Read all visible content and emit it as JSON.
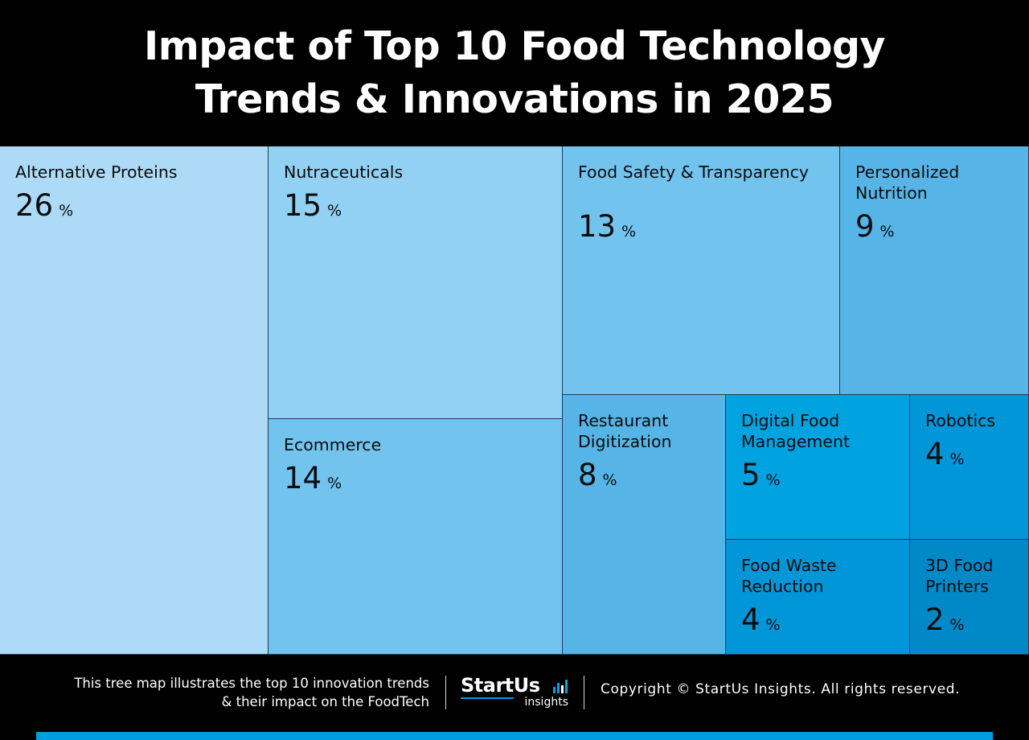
{
  "header": {
    "title_line1": "Impact of Top 10 Food Technology",
    "title_line2": "Trends & Innovations in 2025"
  },
  "chart_data": {
    "type": "treemap",
    "title": "Impact of Top 10 Food Technology Trends & Innovations in 2025",
    "unit": "%",
    "items": [
      {
        "label": "Alternative Proteins",
        "value": 26,
        "color": "#addbf7"
      },
      {
        "label": "Nutraceuticals",
        "value": 15,
        "color": "#92d1f4"
      },
      {
        "label": "Ecommerce",
        "value": 14,
        "color": "#72c4ee"
      },
      {
        "label": "Food Safety & Transparency",
        "value": 13,
        "color": "#72c4ee"
      },
      {
        "label": "Personalized Nutrition",
        "value": 9,
        "color": "#56b5e6"
      },
      {
        "label": "Restaurant Digitization",
        "value": 8,
        "color": "#56b5e6"
      },
      {
        "label": "Digital Food Management",
        "value": 5,
        "color": "#00a2e0"
      },
      {
        "label": "Robotics",
        "value": 4,
        "color": "#0096d8"
      },
      {
        "label": "Food Waste Reduction",
        "value": 4,
        "color": "#0096d8"
      },
      {
        "label": "3D Food Printers",
        "value": 2,
        "color": "#0088c7"
      }
    ]
  },
  "footer": {
    "description_line1": "This tree map illustrates the top 10 innovation trends",
    "description_line2": "& their impact on the FoodTech",
    "logo_word": "StartUs",
    "logo_sub": "insights",
    "copyright": "Copyright © StartUs Insights. All rights reserved."
  },
  "colors": {
    "background": "#000000",
    "accent_bar": "#009ee0"
  }
}
